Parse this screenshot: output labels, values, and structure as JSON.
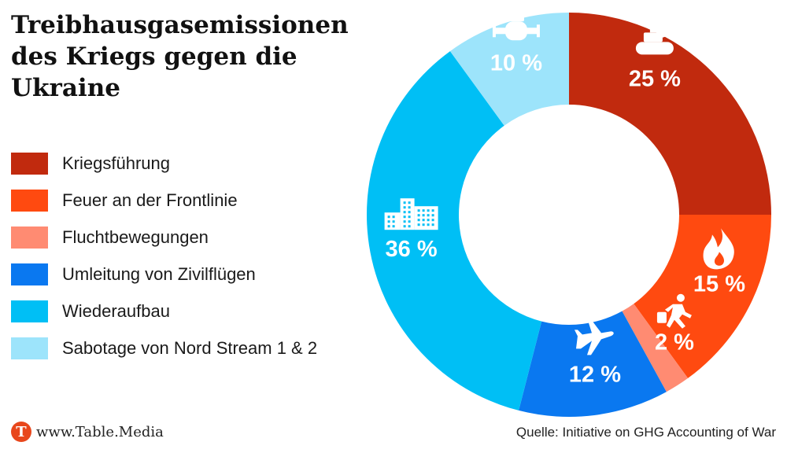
{
  "title": "Treibhausgasemissionen des Kriegs gegen die Ukraine",
  "legend": [
    {
      "label": "Kriegsführung",
      "color": "#c12a0e"
    },
    {
      "label": "Feuer an der Frontlinie",
      "color": "#ff4a10"
    },
    {
      "label": "Fluchtbewegungen",
      "color": "#ff8b72"
    },
    {
      "label": "Umleitung von Zivilflügen",
      "color": "#0a78f0"
    },
    {
      "label": "Wiederaufbau",
      "color": "#00bff5"
    },
    {
      "label": "Sabotage von Nord Stream 1 & 2",
      "color": "#9de4fb"
    }
  ],
  "chart_data": {
    "type": "pie",
    "style": "donut",
    "categories": [
      "Kriegsführung",
      "Feuer an der Frontlinie",
      "Fluchtbewegungen",
      "Umleitung von Zivilflügen",
      "Wiederaufbau",
      "Sabotage von Nord Stream 1 & 2"
    ],
    "values": [
      25,
      15,
      2,
      12,
      36,
      10
    ],
    "value_labels": [
      "25 %",
      "15 %",
      "2 %",
      "12 %",
      "36 %",
      "10 %"
    ],
    "colors": [
      "#c12a0e",
      "#ff4a10",
      "#ff8b72",
      "#0a78f0",
      "#00bff5",
      "#9de4fb"
    ],
    "icons": [
      "tank-icon",
      "fire-icon",
      "running-person-icon",
      "airplane-icon",
      "buildings-icon",
      "pipeline-valve-icon"
    ],
    "start": "12 o'clock",
    "direction": "clockwise",
    "legend_position": "left"
  },
  "footer": {
    "logo_letter": "T",
    "website": "www.Table.Media",
    "source": "Quelle: Initiative on GHG Accounting of War"
  }
}
